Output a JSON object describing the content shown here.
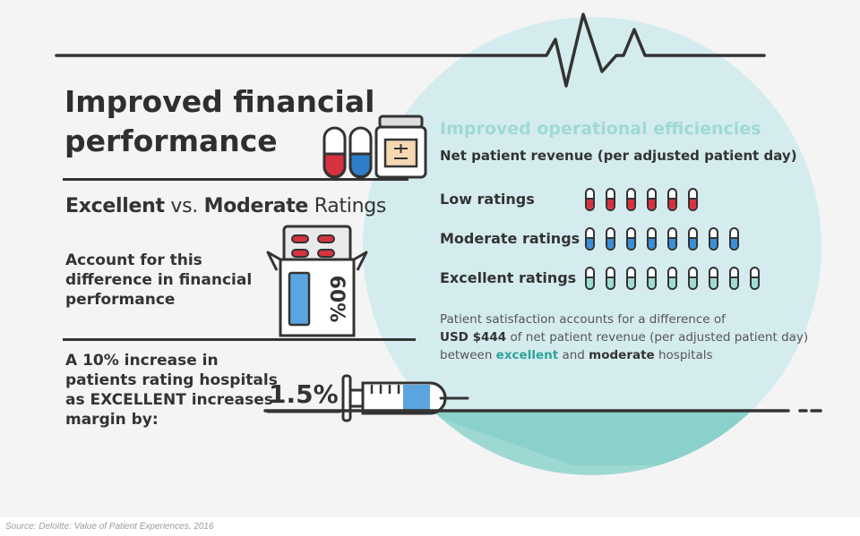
{
  "heading": {
    "line1": "Improved financial",
    "line2": "performance"
  },
  "ratings": {
    "strong1": "Excellent",
    "mid": " vs. ",
    "strong2": "Moderate",
    "tail": " Ratings"
  },
  "account": {
    "line1": "Account for this",
    "line2": "difference in financial",
    "line3": "performance",
    "box_value": "60%"
  },
  "increase": {
    "line1": "A 10% increase in",
    "line2": "patients rating hospitals",
    "line3": "as EXCELLENT increases",
    "line4": "margin by:",
    "value": "1.5%"
  },
  "efficiency": {
    "title": "Improved operational efficiencies",
    "subtitle": "Net patient revenue (per adjusted patient day)",
    "rows": [
      {
        "label": "Low ratings",
        "count": 6,
        "color": "#d7323f"
      },
      {
        "label": "Moderate ratings",
        "count": 8,
        "color": "#3a8fd9"
      },
      {
        "label": "Excellent ratings",
        "count": 9,
        "color": "#9fdbd6"
      }
    ],
    "note": {
      "p1": "Patient satisfaction accounts for a difference of",
      "p2_bold": "USD $444",
      "p2_rest": " of net patient revenue (per adjusted patient day)",
      "p3_a": "between ",
      "p3_exc": "excellent",
      "p3_b": " and ",
      "p3_mod": "moderate",
      "p3_c": " hospitals"
    }
  },
  "source": "Source: Deloitte: Value of Patient Experiences, 2016",
  "colors": {
    "circle": "#d4ecee",
    "teal": "#8fd3cd",
    "red": "#d7323f",
    "blue": "#3a8fd9",
    "dark": "#333333"
  }
}
